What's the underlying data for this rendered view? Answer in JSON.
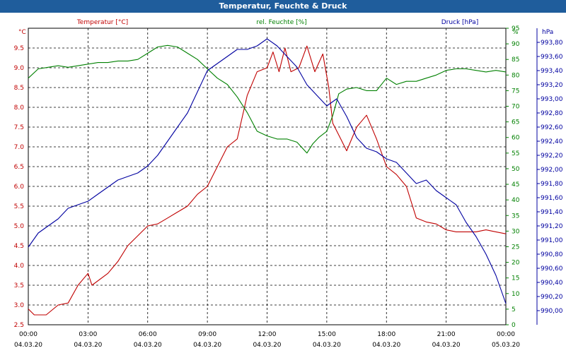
{
  "window": {
    "title": "Temperatur, Feuchte & Druck"
  },
  "chart_data": {
    "type": "line",
    "title": "Temperatur, Feuchte & Druck",
    "grid": true,
    "x_axis": {
      "ticks": [
        {
          "time": "00:00",
          "date": "04.03.20"
        },
        {
          "time": "03:00",
          "date": "04.03.20"
        },
        {
          "time": "06:00",
          "date": "04.03.20"
        },
        {
          "time": "09:00",
          "date": "04.03.20"
        },
        {
          "time": "12:00",
          "date": "04.03.20"
        },
        {
          "time": "15:00",
          "date": "04.03.20"
        },
        {
          "time": "18:00",
          "date": "04.03.20"
        },
        {
          "time": "21:00",
          "date": "04.03.20"
        },
        {
          "time": "00:00",
          "date": "05.03.20"
        }
      ],
      "range_hours": [
        0,
        24
      ]
    },
    "axes": {
      "temperature": {
        "unit": "°C",
        "range": [
          2.5,
          10.0
        ],
        "ticks": [
          "2.5",
          "3.0",
          "3.5",
          "4.0",
          "4.5",
          "5.0",
          "5.5",
          "6.0",
          "6.5",
          "7.0",
          "7.5",
          "8.0",
          "8.5",
          "9.0",
          "9.5"
        ],
        "color": "#c00000"
      },
      "humidity": {
        "unit": "%",
        "range": [
          0,
          95
        ],
        "ticks": [
          "0",
          "5",
          "10",
          "15",
          "20",
          "25",
          "30",
          "35",
          "40",
          "45",
          "50",
          "55",
          "60",
          "65",
          "70",
          "75",
          "80",
          "85",
          "90",
          "95"
        ],
        "color": "#008000"
      },
      "pressure": {
        "unit": "hPa",
        "range": [
          989.8,
          994.0
        ],
        "ticks": [
          "990,00",
          "990,20",
          "990,40",
          "990,60",
          "990,80",
          "991,00",
          "991,20",
          "991,40",
          "991,60",
          "991,80",
          "992,00",
          "992,20",
          "992,40",
          "992,60",
          "992,80",
          "993,00",
          "993,20",
          "993,40",
          "993,60",
          "993,80"
        ],
        "color": "#0000a0"
      }
    },
    "series": [
      {
        "name": "Temperatur [°C]",
        "axis": "temperature",
        "color": "#c00000",
        "points": [
          [
            0,
            2.9
          ],
          [
            0.3,
            2.75
          ],
          [
            0.9,
            2.75
          ],
          [
            1.5,
            3.0
          ],
          [
            2.0,
            3.05
          ],
          [
            2.5,
            3.5
          ],
          [
            3.0,
            3.8
          ],
          [
            3.2,
            3.5
          ],
          [
            4.0,
            3.8
          ],
          [
            4.5,
            4.1
          ],
          [
            5.0,
            4.5
          ],
          [
            5.5,
            4.75
          ],
          [
            6.0,
            5.0
          ],
          [
            6.5,
            5.05
          ],
          [
            7.0,
            5.2
          ],
          [
            7.5,
            5.35
          ],
          [
            8.0,
            5.5
          ],
          [
            8.5,
            5.8
          ],
          [
            9.0,
            6.0
          ],
          [
            9.5,
            6.5
          ],
          [
            10.0,
            7.0
          ],
          [
            10.5,
            7.2
          ],
          [
            11.0,
            8.3
          ],
          [
            11.5,
            8.9
          ],
          [
            12.0,
            9.0
          ],
          [
            12.3,
            9.4
          ],
          [
            12.6,
            8.9
          ],
          [
            12.9,
            9.5
          ],
          [
            13.2,
            8.9
          ],
          [
            13.6,
            9.0
          ],
          [
            14.0,
            9.55
          ],
          [
            14.4,
            8.9
          ],
          [
            14.8,
            9.35
          ],
          [
            15.1,
            8.5
          ],
          [
            15.3,
            7.6
          ],
          [
            15.7,
            7.2
          ],
          [
            16.0,
            6.9
          ],
          [
            16.5,
            7.5
          ],
          [
            17.0,
            7.8
          ],
          [
            17.5,
            7.2
          ],
          [
            18.0,
            6.5
          ],
          [
            18.5,
            6.3
          ],
          [
            19.0,
            6.0
          ],
          [
            19.5,
            5.2
          ],
          [
            20.0,
            5.1
          ],
          [
            20.5,
            5.05
          ],
          [
            21.0,
            4.9
          ],
          [
            21.5,
            4.85
          ],
          [
            22.0,
            4.85
          ],
          [
            22.5,
            4.85
          ],
          [
            23.0,
            4.9
          ],
          [
            23.5,
            4.85
          ],
          [
            24.0,
            4.8
          ]
        ]
      },
      {
        "name": "rel. Feuchte [%]",
        "axis": "humidity",
        "color": "#008000",
        "points": [
          [
            0,
            79
          ],
          [
            0.5,
            82
          ],
          [
            1.0,
            82.5
          ],
          [
            1.5,
            83
          ],
          [
            2.0,
            82.5
          ],
          [
            2.5,
            83
          ],
          [
            3.0,
            83.5
          ],
          [
            3.5,
            84
          ],
          [
            4.0,
            84
          ],
          [
            4.5,
            84.5
          ],
          [
            5.0,
            84.5
          ],
          [
            5.5,
            85
          ],
          [
            6.0,
            87
          ],
          [
            6.5,
            89
          ],
          [
            7.0,
            89.5
          ],
          [
            7.5,
            89
          ],
          [
            8.0,
            87
          ],
          [
            8.5,
            85
          ],
          [
            9.0,
            82
          ],
          [
            9.5,
            79
          ],
          [
            10.0,
            77
          ],
          [
            10.5,
            73
          ],
          [
            11.0,
            68
          ],
          [
            11.5,
            62
          ],
          [
            12.0,
            60.5
          ],
          [
            12.5,
            59.5
          ],
          [
            13.0,
            59.5
          ],
          [
            13.5,
            58.5
          ],
          [
            14.0,
            55
          ],
          [
            14.3,
            58
          ],
          [
            14.6,
            60
          ],
          [
            15.0,
            62
          ],
          [
            15.3,
            67
          ],
          [
            15.6,
            74
          ],
          [
            16.0,
            75.5
          ],
          [
            16.5,
            76
          ],
          [
            17.0,
            75
          ],
          [
            17.5,
            75
          ],
          [
            18.0,
            79
          ],
          [
            18.5,
            77
          ],
          [
            19.0,
            78
          ],
          [
            19.5,
            78
          ],
          [
            20.0,
            79
          ],
          [
            20.5,
            80
          ],
          [
            21.0,
            81.5
          ],
          [
            21.5,
            82
          ],
          [
            22.0,
            82
          ],
          [
            22.5,
            81.5
          ],
          [
            23.0,
            81
          ],
          [
            23.5,
            81.5
          ],
          [
            24.0,
            81
          ]
        ]
      },
      {
        "name": "Druck [hPa]",
        "axis": "pressure",
        "color": "#0000a0",
        "points": [
          [
            0,
            990.9
          ],
          [
            0.5,
            991.1
          ],
          [
            1.0,
            991.2
          ],
          [
            1.5,
            991.3
          ],
          [
            2.0,
            991.45
          ],
          [
            2.5,
            991.5
          ],
          [
            3.0,
            991.55
          ],
          [
            3.5,
            991.65
          ],
          [
            4.0,
            991.75
          ],
          [
            4.5,
            991.85
          ],
          [
            5.0,
            991.9
          ],
          [
            5.5,
            991.95
          ],
          [
            6.0,
            992.05
          ],
          [
            6.5,
            992.2
          ],
          [
            7.0,
            992.4
          ],
          [
            7.5,
            992.6
          ],
          [
            8.0,
            992.8
          ],
          [
            8.5,
            993.1
          ],
          [
            9.0,
            993.4
          ],
          [
            9.5,
            993.5
          ],
          [
            10.0,
            993.6
          ],
          [
            10.5,
            993.7
          ],
          [
            11.0,
            993.7
          ],
          [
            11.5,
            993.75
          ],
          [
            12.0,
            993.85
          ],
          [
            12.5,
            993.75
          ],
          [
            13.0,
            993.6
          ],
          [
            13.5,
            993.45
          ],
          [
            14.0,
            993.2
          ],
          [
            14.5,
            993.05
          ],
          [
            15.0,
            992.9
          ],
          [
            15.5,
            993.0
          ],
          [
            16.0,
            992.75
          ],
          [
            16.5,
            992.45
          ],
          [
            17.0,
            992.3
          ],
          [
            17.5,
            992.25
          ],
          [
            18.0,
            992.15
          ],
          [
            18.5,
            992.1
          ],
          [
            19.0,
            991.95
          ],
          [
            19.5,
            991.8
          ],
          [
            20.0,
            991.85
          ],
          [
            20.5,
            991.7
          ],
          [
            21.0,
            991.6
          ],
          [
            21.5,
            991.5
          ],
          [
            22.0,
            991.25
          ],
          [
            22.5,
            991.05
          ],
          [
            23.0,
            990.8
          ],
          [
            23.5,
            990.5
          ],
          [
            24.0,
            990.1
          ]
        ]
      }
    ]
  }
}
